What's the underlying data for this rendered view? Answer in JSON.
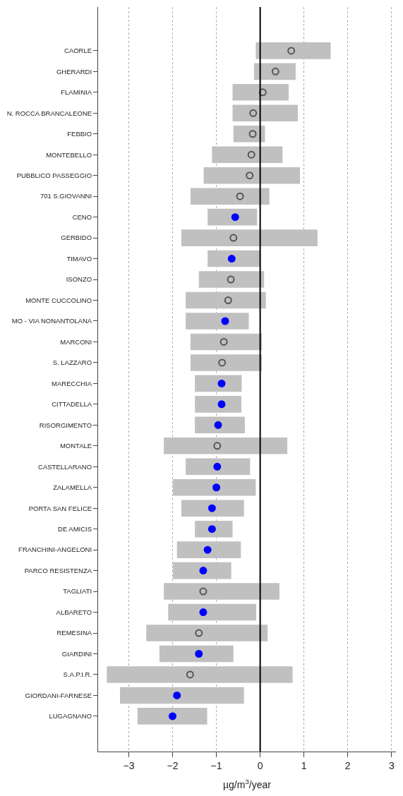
{
  "chart_data": {
    "type": "bar",
    "orientation": "horizontal",
    "xlabel": "µg/m$^{3}$/year",
    "categories": [
      "CAORLE",
      "GHERARDI",
      "FLAMINIA",
      "N. ROCCA BRANCALEONE",
      "FEBBIO",
      "MONTEBELLO",
      "PUBBLICO PASSEGGIO",
      "701 S.GIOVANNI",
      "CENO",
      "GERBIDO",
      "TIMAVO",
      "ISONZO",
      "MONTE CUCCOLINO",
      "MO - VIA NONANTOLANA",
      "MARCONI",
      "S. LAZZARO",
      "MARECCHIA",
      "CITTADELLA",
      "RISORGIMENTO",
      "MONTALE",
      "CASTELLARANO",
      "ZALAMELLA",
      "PORTA SAN FELICE",
      "DE AMICIS",
      "FRANCHINI-ANGELONI",
      "PARCO RESISTENZA",
      "TAGLIATI",
      "ALBARETO",
      "REMESINA",
      "GIARDINI",
      "S.A.P.I.R.",
      "GIORDANI-FARNESE",
      "LUGAGNANO"
    ],
    "series": [
      {
        "color": "#c0c0c0",
        "base": [
          -0.1,
          -0.14,
          -0.63,
          -0.63,
          -0.61,
          -1.1,
          -1.29,
          -1.59,
          -1.2,
          -1.8,
          -1.2,
          -1.4,
          -1.7,
          -1.7,
          -1.59,
          -1.59,
          -1.49,
          -1.49,
          -1.49,
          -2.2,
          -1.7,
          -1.99,
          -1.8,
          -1.49,
          -1.9,
          -1.99,
          -2.2,
          -2.1,
          -2.6,
          -2.3,
          -3.5,
          -3.2,
          -2.8
        ],
        "values": [
          1.71,
          0.95,
          1.28,
          1.49,
          0.72,
          1.61,
          2.2,
          1.8,
          1.13,
          3.11,
          1.2,
          1.49,
          1.83,
          1.44,
          1.63,
          1.63,
          1.07,
          1.06,
          1.14,
          2.82,
          1.47,
          1.89,
          1.43,
          0.86,
          1.46,
          1.33,
          2.64,
          2.01,
          2.77,
          1.69,
          4.24,
          2.83,
          1.59
        ]
      },
      {
        "type": "scatter",
        "marker": "circle-open",
        "color": "#555555",
        "values": [
          0.71,
          0.35,
          0.06,
          -0.16,
          -0.17,
          -0.2,
          -0.24,
          -0.46,
          null,
          -0.61,
          null,
          -0.67,
          -0.73,
          null,
          -0.83,
          -0.87,
          null,
          null,
          null,
          -0.98,
          null,
          null,
          null,
          null,
          null,
          null,
          -1.3,
          null,
          -1.4,
          null,
          -1.6,
          null,
          null
        ]
      },
      {
        "type": "scatter",
        "marker": "circle",
        "color": "#0000ff",
        "values": [
          null,
          null,
          null,
          null,
          null,
          null,
          null,
          null,
          -0.57,
          null,
          -0.65,
          null,
          null,
          -0.8,
          null,
          null,
          -0.88,
          -0.88,
          -0.96,
          null,
          -0.98,
          -1.0,
          -1.1,
          -1.1,
          -1.2,
          -1.3,
          null,
          -1.3,
          null,
          -1.4,
          null,
          -1.9,
          -2.0
        ]
      }
    ],
    "xlim": [
      -3.7,
      3.1
    ],
    "xticks": [
      -3,
      -2,
      -1,
      0,
      1,
      2,
      3
    ],
    "grid": "x",
    "ref_lines": [
      {
        "axis": "x",
        "value": 0,
        "color": "#000000",
        "line_style": "solid"
      }
    ]
  }
}
